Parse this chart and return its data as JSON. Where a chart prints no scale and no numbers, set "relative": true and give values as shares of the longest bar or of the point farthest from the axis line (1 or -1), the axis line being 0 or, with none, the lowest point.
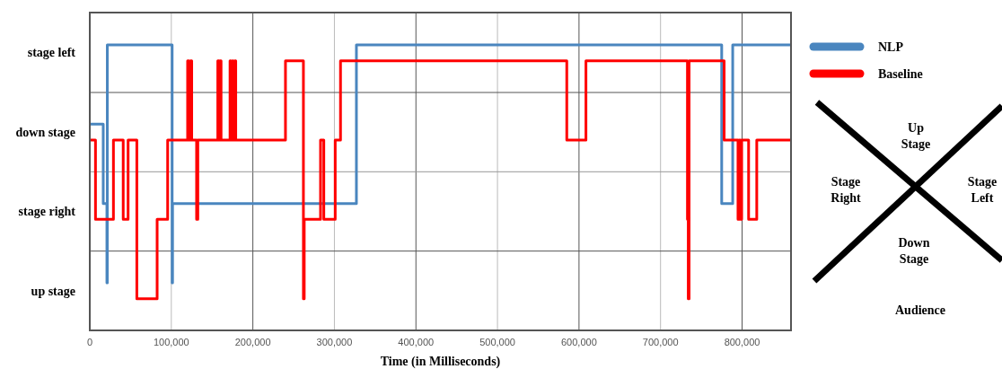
{
  "chart_data": {
    "type": "step",
    "xlabel": "Time (in Milliseconds)",
    "relative": true,
    "xlim": [
      0,
      860000
    ],
    "xticks": [
      {
        "value": 0,
        "label": "0"
      },
      {
        "value": 100000,
        "label": "100,000"
      },
      {
        "value": 200000,
        "label": "200,000"
      },
      {
        "value": 300000,
        "label": "300,000"
      },
      {
        "value": 400000,
        "label": "400,000"
      },
      {
        "value": 500000,
        "label": "500,000"
      },
      {
        "value": 600000,
        "label": "600,000"
      },
      {
        "value": 700000,
        "label": "700,000"
      },
      {
        "value": 800000,
        "label": "800,000"
      }
    ],
    "grid": "x",
    "legend": "top right",
    "ref_lines": [
      {
        "axis": "y",
        "value": 0.8333,
        "color": "#555555"
      },
      {
        "axis": "y",
        "value": 0.5556,
        "color": "#999999"
      },
      {
        "axis": "y",
        "value": 0.2778,
        "color": "#555555"
      }
    ],
    "series": [
      {
        "name": "NLP",
        "color": "#4a86bf",
        "x": [
          0,
          16500,
          21000,
          21500,
          101000,
          101500,
          327000,
          775000,
          788500,
          860000
        ],
        "values": [
          0.7222,
          0.4444,
          0.1667,
          1,
          0.1667,
          0.4444,
          1,
          0.4444,
          1,
          1
        ]
      },
      {
        "name": "Baseline",
        "color": "#ff0000",
        "x": [
          0,
          7000,
          29000,
          41000,
          47000,
          57700,
          82600,
          95500,
          120000,
          121500,
          123500,
          125000,
          131000,
          132500,
          157000,
          158500,
          160000,
          161000,
          172000,
          173000,
          175000,
          176000,
          178000,
          179000,
          240000,
          262000,
          263000,
          283000,
          287000,
          301000,
          307500,
          585000,
          608500,
          733000,
          734000,
          735000,
          778000,
          795000,
          796500,
          798000,
          799500,
          808000,
          818000,
          860000
        ],
        "values": [
          0.6667,
          0.3889,
          0.6667,
          0.3889,
          0.6667,
          0.1111,
          0.3889,
          0.6667,
          0.9444,
          0.6667,
          0.9444,
          0.6667,
          0.3889,
          0.6667,
          0.9444,
          0.6667,
          0.9444,
          0.6667,
          0.9444,
          0.6667,
          0.9444,
          0.6667,
          0.9444,
          0.6667,
          0.9444,
          0.1111,
          0.3889,
          0.6667,
          0.3889,
          0.6667,
          0.9444,
          0.6667,
          0.9444,
          0.3889,
          0.1111,
          0.9444,
          0.6667,
          0.3889,
          0.6667,
          0.3889,
          0.6667,
          0.3889,
          0.6667,
          0.6667
        ]
      }
    ],
    "annotations": [
      "stage left",
      "down stage",
      "stage right",
      "up stage",
      "Up Stage",
      "Stage Right",
      "Stage Left",
      "Down Stage",
      "Audience"
    ]
  }
}
